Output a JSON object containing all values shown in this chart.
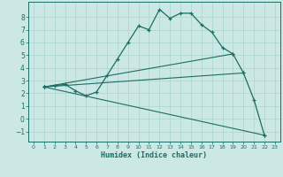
{
  "xlabel": "Humidex (Indice chaleur)",
  "background_color": "#cce8e4",
  "line_color": "#1a6e64",
  "grid_color": "#aad4ce",
  "xlim": [
    -0.5,
    23.5
  ],
  "ylim": [
    -1.8,
    9.2
  ],
  "xticks": [
    0,
    1,
    2,
    3,
    4,
    5,
    6,
    7,
    8,
    9,
    10,
    11,
    12,
    13,
    14,
    15,
    16,
    17,
    18,
    19,
    20,
    21,
    22,
    23
  ],
  "yticks": [
    -1,
    0,
    1,
    2,
    3,
    4,
    5,
    6,
    7,
    8
  ],
  "main_line": {
    "x": [
      1,
      2,
      3,
      4,
      5,
      6,
      7,
      8,
      9,
      10,
      11,
      12,
      13,
      14,
      15,
      16,
      17,
      18,
      19,
      20,
      21,
      22
    ],
    "y": [
      2.5,
      2.6,
      2.7,
      2.2,
      1.8,
      2.1,
      3.4,
      4.7,
      6.0,
      7.3,
      7.0,
      8.6,
      7.9,
      8.3,
      8.3,
      7.4,
      6.8,
      5.6,
      5.1,
      3.6,
      1.5,
      -1.3
    ]
  },
  "straight_lines": [
    {
      "x": [
        1,
        19
      ],
      "y": [
        2.5,
        5.1
      ]
    },
    {
      "x": [
        1,
        20
      ],
      "y": [
        2.5,
        3.6
      ]
    },
    {
      "x": [
        1,
        22
      ],
      "y": [
        2.5,
        -1.3
      ]
    }
  ]
}
